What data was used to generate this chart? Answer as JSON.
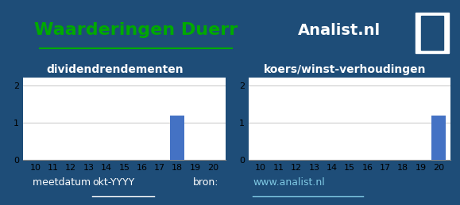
{
  "title": "Waarderingen Duerr",
  "brand": "Analist.nl",
  "bg_color": "#1e4d78",
  "title_bg": "#ffffff",
  "chart_bg": "#ffffff",
  "bar_color": "#4472c4",
  "subtitle1": "dividendrendementen",
  "subtitle2": "koers/winst-verhoudingen",
  "footer_meetdatum": "meetdatum ",
  "footer_okt": "okt-YYYY",
  "footer_bron": "bron:",
  "footer_url": "www.analist.nl",
  "div_years": [
    10,
    11,
    12,
    13,
    14,
    15,
    16,
    17,
    18,
    19,
    20
  ],
  "div_values": [
    0,
    0,
    0,
    0,
    0,
    0,
    0,
    0,
    1.2,
    0,
    0
  ],
  "kw_years": [
    10,
    11,
    12,
    13,
    14,
    15,
    16,
    17,
    18,
    19,
    20
  ],
  "kw_values": [
    0,
    0,
    0,
    0,
    0,
    0,
    0,
    0,
    0,
    0,
    1.2
  ],
  "ylim": [
    0,
    2.2
  ],
  "yticks": [
    0,
    1,
    2
  ],
  "ytick_labels": [
    "0",
    "1",
    "2"
  ],
  "title_fontsize": 16,
  "subtitle_fontsize": 10,
  "tick_fontsize": 8,
  "footer_fontsize": 9,
  "title_color": "#00aa00",
  "brand_color": "#ffffff",
  "subtitle_color": "#ffffff",
  "footer_color": "#ffffff",
  "footer_url_color": "#7ec8e3",
  "grid_color": "#cccccc",
  "spine_color": "#888888"
}
